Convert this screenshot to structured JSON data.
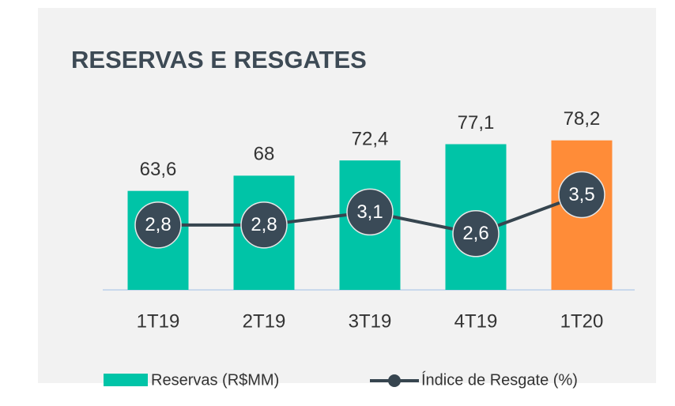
{
  "chart_data": {
    "type": "bar_line",
    "title": "RESERVAS E RESGATES",
    "categories": [
      "1T19",
      "2T19",
      "3T19",
      "4T19",
      "1T20"
    ],
    "series": [
      {
        "name": "Reservas (R$MM)",
        "type": "bar",
        "color": "#00c4a7",
        "colors": [
          "#00c4a7",
          "#00c4a7",
          "#00c4a7",
          "#00c4a7",
          "#ff8c38"
        ],
        "values": [
          63.6,
          68,
          72.4,
          77.1,
          78.2
        ],
        "value_labels": [
          "63,6",
          "68",
          "72,4",
          "77,1",
          "78,2"
        ]
      },
      {
        "name": "Índice de Resgate (%)",
        "type": "line",
        "axis": "y2",
        "color": "#36454f",
        "values": [
          2.8,
          2.8,
          3.1,
          2.6,
          3.5
        ],
        "value_labels": [
          "2,8",
          "2,8",
          "3,1",
          "2,6",
          "3,5"
        ]
      }
    ],
    "ylim": [
      35,
      90
    ],
    "y2lim": [
      1.3,
      5.7
    ]
  }
}
